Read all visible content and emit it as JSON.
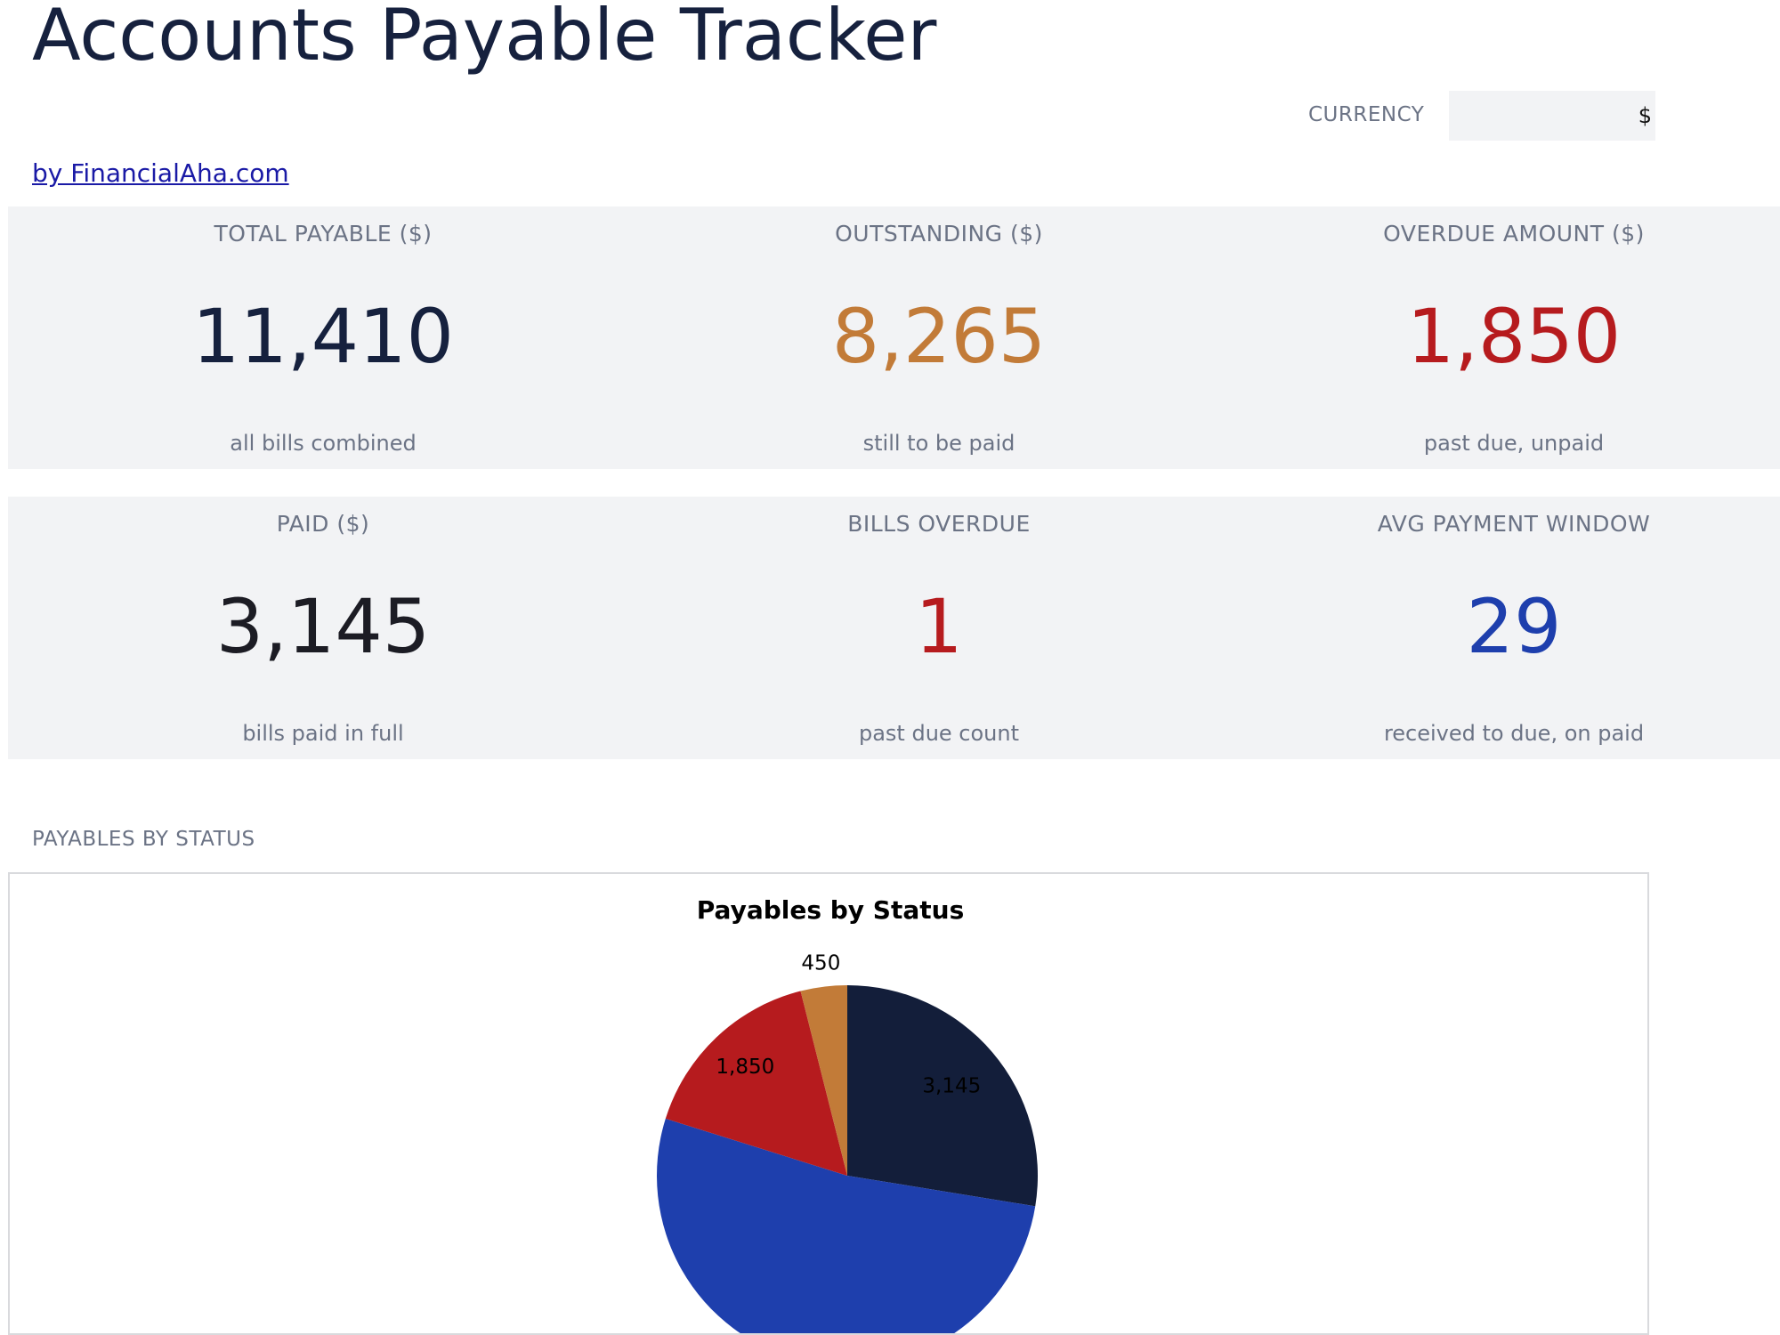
{
  "header": {
    "title": "Accounts Payable Tracker",
    "currency_label": "CURRENCY",
    "currency_value": "$",
    "link_text": "by FinancialAha.com"
  },
  "kpis": {
    "total_payable": {
      "label": "TOTAL PAYABLE ($)",
      "value": "11,410",
      "sub": "all bills combined",
      "color": "#16213e"
    },
    "outstanding": {
      "label": "OUTSTANDING ($)",
      "value": "8,265",
      "sub": "still to be paid",
      "color": "#c27b38"
    },
    "overdue_amount": {
      "label": "OVERDUE AMOUNT ($)",
      "value": "1,850",
      "sub": "past due, unpaid",
      "color": "#b61b1e"
    },
    "paid": {
      "label": "PAID ($)",
      "value": "3,145",
      "sub": "bills paid in full",
      "color": "#1c1c24"
    },
    "bills_overdue": {
      "label": "BILLS OVERDUE",
      "value": "1",
      "sub": "past due count",
      "color": "#b61b1e"
    },
    "avg_payment_window": {
      "label": "AVG PAYMENT WINDOW",
      "value": "29",
      "sub": "received to due, on paid",
      "color": "#1e3fad"
    }
  },
  "section": {
    "payables_label": "PAYABLES BY STATUS"
  },
  "chart_data": {
    "type": "pie",
    "title": "Payables by Status",
    "start": "top",
    "direction": "clockwise",
    "slices": [
      {
        "value": 3145,
        "label": "3,145",
        "color": "#131e3a"
      },
      {
        "value": 5965,
        "label": "",
        "color": "#1e3fad"
      },
      {
        "value": 1850,
        "label": "1,850",
        "color": "#b61b1e"
      },
      {
        "value": 450,
        "label": "450",
        "color": "#c27b38"
      }
    ]
  }
}
